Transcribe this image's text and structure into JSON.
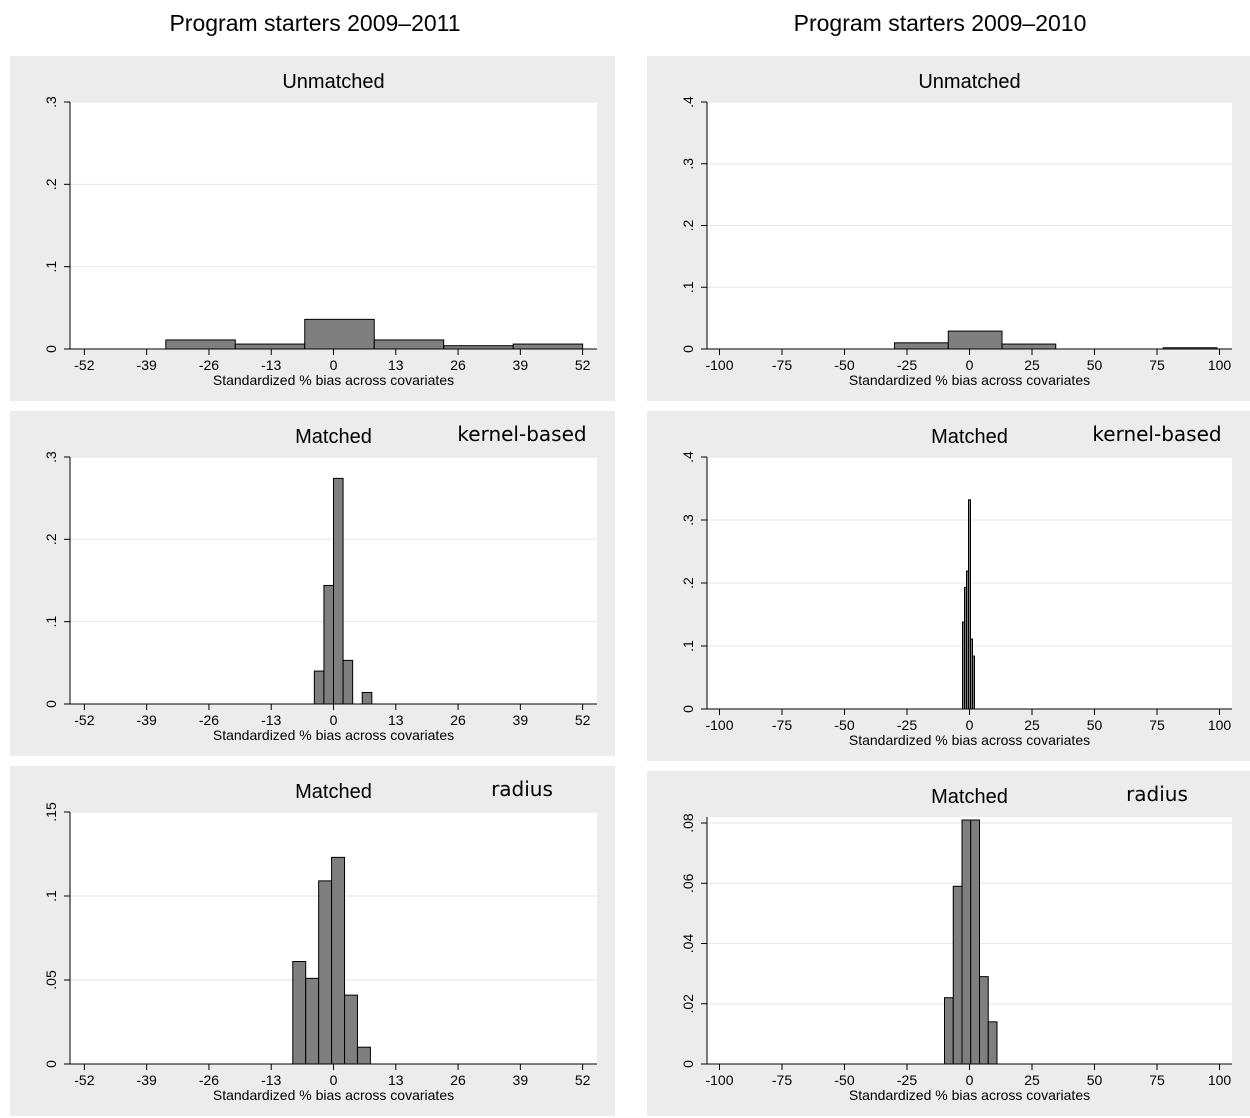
{
  "column_titles": [
    "Program starters 2009–2011",
    "Program starters 2009–2010"
  ],
  "colors": {
    "panel_bg": "#ececec",
    "plot_bg": "#ffffff",
    "bar_fill": "#7f7f7f",
    "bar_stroke": "#000000",
    "grid": "#e6e6e6"
  },
  "chart_data": [
    {
      "type": "bar",
      "histogram": true,
      "column": 0,
      "title": "Unmatched",
      "note": "",
      "xlabel": "Standardized % bias across covariates",
      "xlim": [
        -55,
        55
      ],
      "ylim": [
        0,
        0.3
      ],
      "xticks": [
        -52,
        -39,
        -26,
        -13,
        0,
        13,
        26,
        39,
        52
      ],
      "yticks": [
        0,
        0.1,
        0.2,
        0.3
      ],
      "ytick_labels": [
        "0",
        ".1",
        ".2",
        ".3"
      ],
      "grid": true,
      "bins": [
        {
          "x0": -35,
          "x1": -20.5,
          "y": 0.011
        },
        {
          "x0": -20.5,
          "x1": -6,
          "y": 0.006
        },
        {
          "x0": -6,
          "x1": 8.5,
          "y": 0.036
        },
        {
          "x0": 8.5,
          "x1": 23,
          "y": 0.011
        },
        {
          "x0": 23,
          "x1": 37.5,
          "y": 0.004
        },
        {
          "x0": 37.5,
          "x1": 52,
          "y": 0.006
        }
      ]
    },
    {
      "type": "bar",
      "histogram": true,
      "column": 1,
      "title": "Unmatched",
      "note": "",
      "xlabel": "Standardized % bias across covariates",
      "xlim": [
        -105,
        105
      ],
      "ylim": [
        0,
        0.4
      ],
      "xticks": [
        -100,
        -75,
        -50,
        -25,
        0,
        25,
        50,
        75,
        100
      ],
      "yticks": [
        0,
        0.1,
        0.2,
        0.3,
        0.4
      ],
      "ytick_labels": [
        "0",
        ".1",
        ".2",
        ".3",
        ".4"
      ],
      "grid": true,
      "bins": [
        {
          "x0": -30,
          "x1": -8.5,
          "y": 0.01
        },
        {
          "x0": -8.5,
          "x1": 13,
          "y": 0.029
        },
        {
          "x0": 13,
          "x1": 34.5,
          "y": 0.008
        },
        {
          "x0": 34.5,
          "x1": 56,
          "y": 0.0
        },
        {
          "x0": 56,
          "x1": 77.5,
          "y": 0.0
        },
        {
          "x0": 77.5,
          "x1": 99,
          "y": 0.002
        }
      ]
    },
    {
      "type": "bar",
      "histogram": true,
      "column": 0,
      "title": "Matched",
      "note": "kernel-based",
      "xlabel": "Standardized % bias across covariates",
      "xlim": [
        -55,
        55
      ],
      "ylim": [
        0,
        0.3
      ],
      "xticks": [
        -52,
        -39,
        -26,
        -13,
        0,
        13,
        26,
        39,
        52
      ],
      "yticks": [
        0,
        0.1,
        0.2,
        0.3
      ],
      "ytick_labels": [
        "0",
        ".1",
        ".2",
        ".3"
      ],
      "grid": true,
      "bins": [
        {
          "x0": -4,
          "x1": -2,
          "y": 0.04
        },
        {
          "x0": -2,
          "x1": 0,
          "y": 0.144
        },
        {
          "x0": 0,
          "x1": 2,
          "y": 0.274
        },
        {
          "x0": 2,
          "x1": 4,
          "y": 0.053
        },
        {
          "x0": 4,
          "x1": 6,
          "y": 0.0
        },
        {
          "x0": 6,
          "x1": 8,
          "y": 0.014
        }
      ]
    },
    {
      "type": "bar",
      "histogram": true,
      "column": 1,
      "title": "Matched",
      "note": "kernel-based",
      "xlabel": "Standardized % bias across covariates",
      "xlim": [
        -105,
        105
      ],
      "ylim": [
        0,
        0.4
      ],
      "xticks": [
        -100,
        -75,
        -50,
        -25,
        0,
        25,
        50,
        75,
        100
      ],
      "yticks": [
        0,
        0.1,
        0.2,
        0.3,
        0.4
      ],
      "ytick_labels": [
        "0",
        ".1",
        ".2",
        ".3",
        ".4"
      ],
      "grid": true,
      "bins": [
        {
          "x0": -2.8,
          "x1": -2.0,
          "y": 0.138
        },
        {
          "x0": -2.0,
          "x1": -1.2,
          "y": 0.193
        },
        {
          "x0": -1.2,
          "x1": -0.4,
          "y": 0.219
        },
        {
          "x0": -0.4,
          "x1": 0.4,
          "y": 0.332
        },
        {
          "x0": 0.4,
          "x1": 1.2,
          "y": 0.111
        },
        {
          "x0": 1.2,
          "x1": 2.0,
          "y": 0.084
        }
      ]
    },
    {
      "type": "bar",
      "histogram": true,
      "column": 0,
      "title": "Matched",
      "note": "radius",
      "xlabel": "Standardized % bias across covariates",
      "xlim": [
        -55,
        55
      ],
      "ylim": [
        0,
        0.15
      ],
      "xticks": [
        -52,
        -39,
        -26,
        -13,
        0,
        13,
        26,
        39,
        52
      ],
      "yticks": [
        0,
        0.05,
        0.1,
        0.15
      ],
      "ytick_labels": [
        "0",
        ".05",
        ".1",
        ".15"
      ],
      "grid": true,
      "bins": [
        {
          "x0": -8.5,
          "x1": -5.8,
          "y": 0.061
        },
        {
          "x0": -5.8,
          "x1": -3.1,
          "y": 0.051
        },
        {
          "x0": -3.1,
          "x1": -0.4,
          "y": 0.109
        },
        {
          "x0": -0.4,
          "x1": 2.3,
          "y": 0.123
        },
        {
          "x0": 2.3,
          "x1": 5.0,
          "y": 0.041
        },
        {
          "x0": 5.0,
          "x1": 7.7,
          "y": 0.01
        }
      ]
    },
    {
      "type": "bar",
      "histogram": true,
      "column": 1,
      "title": "Matched",
      "note": "radius",
      "xlabel": "Standardized % bias across covariates",
      "xlim": [
        -105,
        105
      ],
      "ylim": [
        0,
        0.082
      ],
      "xticks": [
        -100,
        -75,
        -50,
        -25,
        0,
        25,
        50,
        75,
        100
      ],
      "yticks": [
        0,
        0.02,
        0.04,
        0.06,
        0.08
      ],
      "ytick_labels": [
        "0",
        ".02",
        ".04",
        ".06",
        ".08"
      ],
      "grid": true,
      "bins": [
        {
          "x0": -10,
          "x1": -6.5,
          "y": 0.022
        },
        {
          "x0": -6.5,
          "x1": -3,
          "y": 0.059
        },
        {
          "x0": -3,
          "x1": 0.5,
          "y": 0.081
        },
        {
          "x0": 0.5,
          "x1": 4,
          "y": 0.081
        },
        {
          "x0": 4,
          "x1": 7.5,
          "y": 0.029
        },
        {
          "x0": 7.5,
          "x1": 11,
          "y": 0.014
        }
      ]
    }
  ]
}
